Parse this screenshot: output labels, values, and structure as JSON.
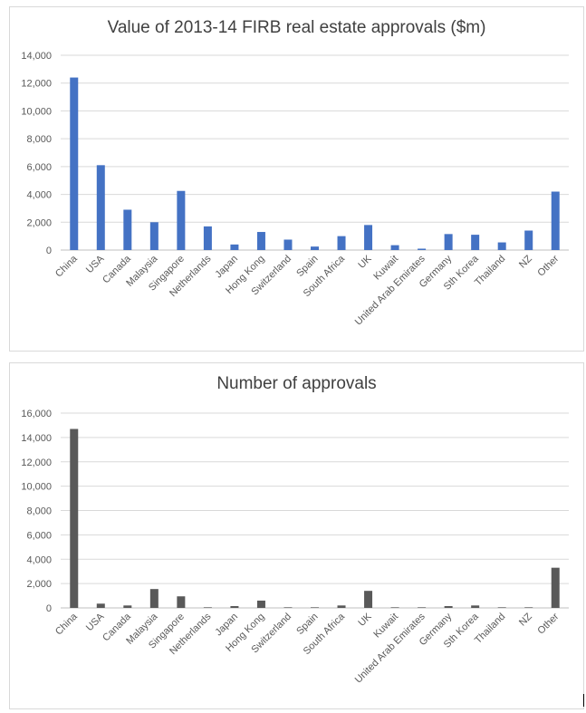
{
  "chart_data": [
    {
      "type": "bar",
      "title": "Value of 2013-14 FIRB real estate approvals ($m)",
      "categories": [
        "China",
        "USA",
        "Canada",
        "Malaysia",
        "Singapore",
        "Netherlands",
        "Japan",
        "Hong Kong",
        "Switzerland",
        "Spain",
        "South Africa",
        "UK",
        "Kuwait",
        "United Arab Emirates",
        "Germany",
        "Sth Korea",
        "Thailand",
        "NZ",
        "Other"
      ],
      "values": [
        12400,
        6100,
        2900,
        2000,
        4250,
        1700,
        400,
        1300,
        750,
        250,
        1000,
        1800,
        350,
        100,
        1150,
        1100,
        550,
        1400,
        4200
      ],
      "ylim": [
        0,
        14000
      ],
      "yticks": [
        "0",
        "2,000",
        "4,000",
        "6,000",
        "8,000",
        "10,000",
        "12,000",
        "14,000"
      ],
      "bar_color": "#4472c4",
      "grid": true,
      "legend": false
    },
    {
      "type": "bar",
      "title": "Number of approvals",
      "categories": [
        "China",
        "USA",
        "Canada",
        "Malaysia",
        "Singapore",
        "Netherlands",
        "Japan",
        "Hong Kong",
        "Switzerland",
        "Spain",
        "South Africa",
        "UK",
        "Kuwait",
        "United Arab Emirates",
        "Germany",
        "Sth Korea",
        "Thailand",
        "NZ",
        "Other"
      ],
      "values": [
        14700,
        350,
        200,
        1550,
        950,
        50,
        150,
        600,
        50,
        50,
        200,
        1400,
        50,
        50,
        150,
        200,
        50,
        50,
        3300
      ],
      "ylim": [
        0,
        16000
      ],
      "yticks": [
        "0",
        "2,000",
        "4,000",
        "6,000",
        "8,000",
        "10,000",
        "12,000",
        "14,000",
        "16,000"
      ],
      "bar_color": "#595959",
      "grid": true,
      "legend": false
    }
  ]
}
